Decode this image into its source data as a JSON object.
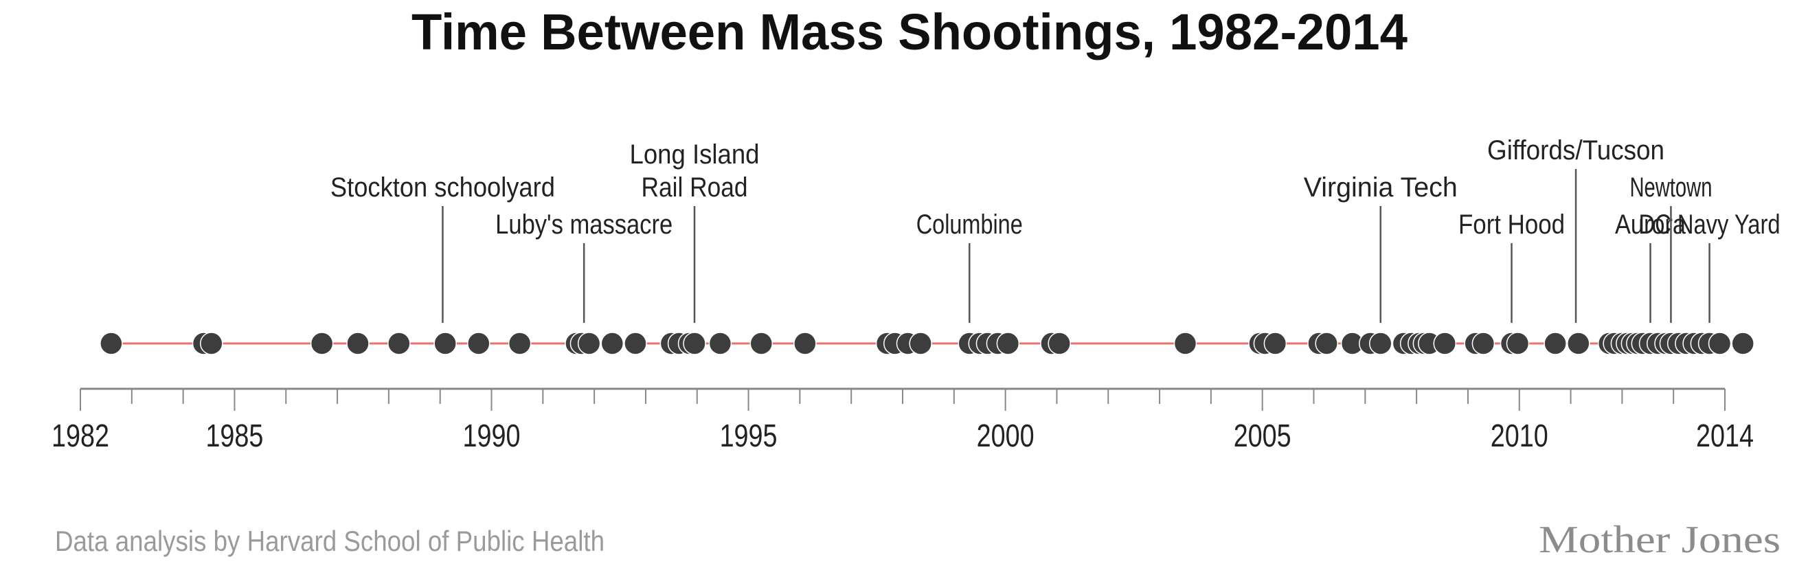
{
  "chart_data": {
    "type": "scatter",
    "title": "Time Between Mass Shootings, 1982-2014",
    "xlabel": "",
    "ylabel": "",
    "xlim": [
      1982,
      2014
    ],
    "x_ticks": [
      "1982",
      "1985",
      "1990",
      "1995",
      "2000",
      "2005",
      "2010",
      "2014"
    ],
    "grid": false,
    "colors": {
      "marker": "#3d3d3d",
      "line": "#e8736d",
      "axis": "#888888",
      "text": "#222222"
    },
    "events": [
      1982.6,
      1984.4,
      1984.55,
      1986.7,
      1987.4,
      1988.2,
      1989.1,
      1989.75,
      1990.55,
      1991.65,
      1991.75,
      1991.9,
      1992.35,
      1992.8,
      1993.5,
      1993.65,
      1993.85,
      1993.95,
      1994.45,
      1995.25,
      1996.1,
      1997.7,
      1997.85,
      1998.1,
      1998.35,
      1999.3,
      1999.5,
      1999.65,
      1999.85,
      2000.05,
      2000.9,
      2001.05,
      2003.5,
      2004.95,
      2005.05,
      2005.25,
      2006.1,
      2006.25,
      2006.75,
      2007.1,
      2007.3,
      2007.75,
      2007.9,
      2008.05,
      2008.15,
      2008.25,
      2008.55,
      2009.15,
      2009.3,
      2009.85,
      2009.97,
      2010.7,
      2011.15,
      2011.75,
      2011.85,
      2012.0,
      2012.1,
      2012.2,
      2012.3,
      2012.4,
      2012.55,
      2012.7,
      2012.85,
      2012.95,
      2013.1,
      2013.25,
      2013.4,
      2013.55,
      2013.7,
      2013.9,
      2014.35
    ],
    "annotations": [
      {
        "lines": [
          "Stockton schoolyard"
        ],
        "x": 1989.05,
        "level": 2
      },
      {
        "lines": [
          "Luby's massacre"
        ],
        "x": 1991.8,
        "level": 1
      },
      {
        "lines": [
          "Long Island",
          "Rail Road"
        ],
        "x": 1993.95,
        "level": 2
      },
      {
        "lines": [
          "Columbine"
        ],
        "x": 1999.3,
        "level": 1
      },
      {
        "lines": [
          "Virginia Tech"
        ],
        "x": 2007.3,
        "level": 2
      },
      {
        "lines": [
          "Fort Hood"
        ],
        "x": 2009.85,
        "level": 1
      },
      {
        "lines": [
          "Giffords/Tucson"
        ],
        "x": 2011.1,
        "level": 3
      },
      {
        "lines": [
          "Aurora"
        ],
        "x": 2012.55,
        "level": 1
      },
      {
        "lines": [
          "Newtown"
        ],
        "x": 2012.95,
        "level": 2
      },
      {
        "lines": [
          "DC Navy Yard"
        ],
        "x": 2013.7,
        "level": 1
      }
    ]
  },
  "footer": {
    "credit": "Data analysis by Harvard School of Public Health",
    "logo": "Mother Jones"
  }
}
